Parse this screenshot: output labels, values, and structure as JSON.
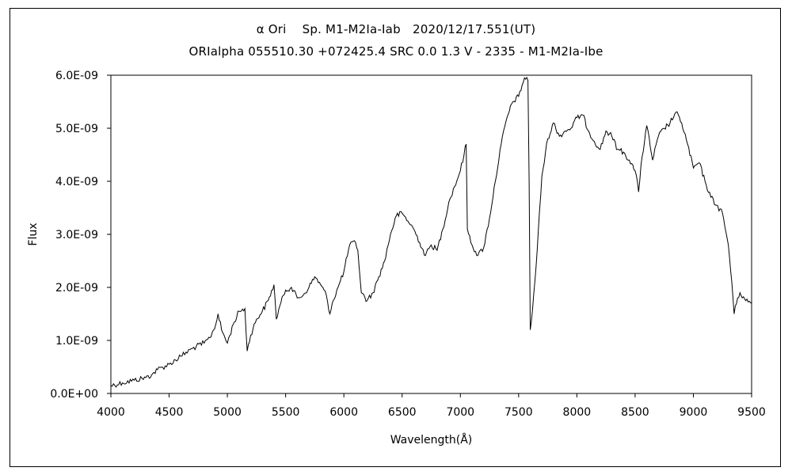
{
  "chart_data": {
    "type": "line",
    "title": "α Ori　 Sp. M1-M2Ia-Iab　2020/12/17.551(UT)",
    "subtitle": "ORIalpha 055510.30 +072425.4 SRC 0.0 1.3 V - 2335 - M1-M2Ia-Ibe",
    "xlabel": "Wavelength(Å)",
    "ylabel": "Flux",
    "xlim": [
      4000,
      9500
    ],
    "ylim": [
      0,
      6e-09
    ],
    "x_ticks": [
      4000,
      4500,
      5000,
      5500,
      6000,
      6500,
      7000,
      7500,
      8000,
      8500,
      9000,
      9500
    ],
    "x_tick_labels": [
      "4000",
      "4500",
      "5000",
      "5500",
      "6000",
      "6500",
      "7000",
      "7500",
      "8000",
      "8500",
      "9000",
      "9500"
    ],
    "y_ticks": [
      0,
      1e-09,
      2e-09,
      3e-09,
      4e-09,
      5e-09,
      6e-09
    ],
    "y_tick_labels": [
      "0.0E+00",
      "1.0E-09",
      "2.0E-09",
      "3.0E-09",
      "4.0E-09",
      "5.0E-09",
      "6.0E-09"
    ],
    "grid": false,
    "line_color": "#000000",
    "series": [
      {
        "x": [
          4000,
          4100,
          4200,
          4300,
          4350,
          4400,
          4500,
          4600,
          4700,
          4800,
          4850,
          4900,
          4920,
          4950,
          5000,
          5050,
          5100,
          5150,
          5170,
          5200,
          5250,
          5300,
          5350,
          5400,
          5420,
          5450,
          5500,
          5550,
          5600,
          5650,
          5700,
          5750,
          5800,
          5850,
          5880,
          5900,
          5950,
          6000,
          6050,
          6100,
          6120,
          6150,
          6200,
          6250,
          6300,
          6350,
          6400,
          6450,
          6500,
          6550,
          6600,
          6650,
          6700,
          6750,
          6800,
          6850,
          6900,
          6950,
          7000,
          7050,
          7060,
          7100,
          7150,
          7200,
          7250,
          7300,
          7350,
          7400,
          7450,
          7500,
          7550,
          7580,
          7590,
          7600,
          7620,
          7650,
          7700,
          7750,
          7800,
          7850,
          7900,
          7950,
          8000,
          8050,
          8100,
          8150,
          8200,
          8250,
          8300,
          8350,
          8400,
          8450,
          8500,
          8530,
          8550,
          8600,
          8650,
          8700,
          8750,
          8800,
          8850,
          8900,
          8950,
          9000,
          9050,
          9100,
          9150,
          9200,
          9250,
          9300,
          9330,
          9350,
          9380,
          9400,
          9450,
          9500
        ],
        "y": [
          1.5e-10,
          2e-10,
          2.5e-10,
          3e-10,
          3.5e-10,
          4.5e-10,
          5.5e-10,
          7e-10,
          8.5e-10,
          9.5e-10,
          1.05e-09,
          1.3e-09,
          1.5e-09,
          1.2e-09,
          9.5e-10,
          1.3e-09,
          1.55e-09,
          1.6e-09,
          8e-10,
          1.1e-09,
          1.4e-09,
          1.55e-09,
          1.75e-09,
          2.05e-09,
          1.4e-09,
          1.65e-09,
          1.95e-09,
          2e-09,
          1.8e-09,
          1.85e-09,
          2e-09,
          2.2e-09,
          2.05e-09,
          1.85e-09,
          1.5e-09,
          1.7e-09,
          2e-09,
          2.3e-09,
          2.8e-09,
          2.85e-09,
          2.7e-09,
          1.9e-09,
          1.75e-09,
          1.9e-09,
          2.2e-09,
          2.5e-09,
          3e-09,
          3.35e-09,
          3.4e-09,
          3.25e-09,
          3.1e-09,
          2.85e-09,
          2.6e-09,
          2.8e-09,
          2.7e-09,
          3.1e-09,
          3.6e-09,
          3.9e-09,
          4.2e-09,
          4.7e-09,
          3.1e-09,
          2.8e-09,
          2.6e-09,
          2.75e-09,
          3.3e-09,
          4e-09,
          4.7e-09,
          5.2e-09,
          5.5e-09,
          5.6e-09,
          5.95e-09,
          5.9e-09,
          4e-09,
          1.2e-09,
          1.6e-09,
          2.4e-09,
          4.1e-09,
          4.8e-09,
          5.1e-09,
          4.85e-09,
          4.95e-09,
          5e-09,
          5.2e-09,
          5.25e-09,
          4.95e-09,
          4.75e-09,
          4.6e-09,
          4.95e-09,
          4.85e-09,
          4.6e-09,
          4.55e-09,
          4.4e-09,
          4.2e-09,
          3.8e-09,
          4.3e-09,
          5.05e-09,
          4.4e-09,
          4.85e-09,
          5e-09,
          5.1e-09,
          5.3e-09,
          5.1e-09,
          4.7e-09,
          4.25e-09,
          4.35e-09,
          4e-09,
          3.7e-09,
          3.55e-09,
          3.4e-09,
          2.8e-09,
          2.1e-09,
          1.5e-09,
          1.8e-09,
          1.9e-09,
          1.75e-09,
          1.7e-09
        ]
      }
    ]
  }
}
